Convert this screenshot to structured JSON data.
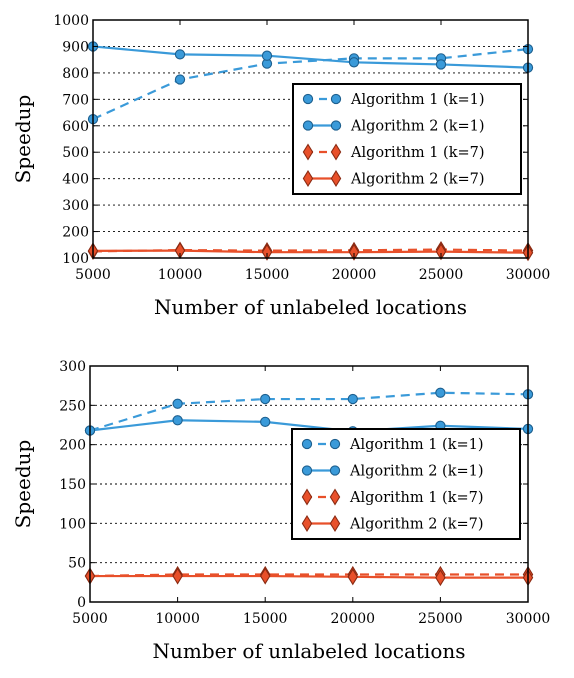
{
  "chart_data": [
    {
      "type": "line",
      "x": [
        5000,
        10000,
        15000,
        20000,
        25000,
        30000
      ],
      "xlabel": "Number of unlabeled locations",
      "ylabel": "Speedup",
      "xlim": [
        5000,
        30000
      ],
      "ylim": [
        100,
        1000
      ],
      "xticks": [
        5000,
        10000,
        15000,
        20000,
        25000,
        30000
      ],
      "yticks": [
        100,
        200,
        300,
        400,
        500,
        600,
        700,
        800,
        900,
        1000
      ],
      "grid": "horizontal dotted",
      "legend_position": "center-right",
      "series": [
        {
          "name": "Algorithm 1 (k=1)",
          "values": [
            625,
            775,
            835,
            855,
            855,
            890
          ],
          "color": "#3a9ad9",
          "dash": "dashed",
          "marker": "circle"
        },
        {
          "name": "Algorithm 2 (k=1)",
          "values": [
            900,
            870,
            865,
            840,
            832,
            820
          ],
          "color": "#3a9ad9",
          "dash": "solid",
          "marker": "circle"
        },
        {
          "name": "Algorithm 1 (k=7)",
          "values": [
            125,
            130,
            128,
            129,
            132,
            128
          ],
          "color": "#e8502a",
          "dash": "dashed",
          "marker": "diamond"
        },
        {
          "name": "Algorithm 2 (k=7)",
          "values": [
            127,
            128,
            122,
            122,
            124,
            120
          ],
          "color": "#e8502a",
          "dash": "solid",
          "marker": "diamond"
        }
      ]
    },
    {
      "type": "line",
      "x": [
        5000,
        10000,
        15000,
        20000,
        25000,
        30000
      ],
      "xlabel": "Number of unlabeled locations",
      "ylabel": "Speedup",
      "xlim": [
        5000,
        30000
      ],
      "ylim": [
        0,
        300
      ],
      "xticks": [
        5000,
        10000,
        15000,
        20000,
        25000,
        30000
      ],
      "yticks": [
        0,
        50,
        100,
        150,
        200,
        250,
        300
      ],
      "grid": "horizontal dotted",
      "legend_position": "center-right",
      "series": [
        {
          "name": "Algorithm 1 (k=1)",
          "values": [
            218,
            252,
            258,
            258,
            266,
            264
          ],
          "color": "#3a9ad9",
          "dash": "dashed",
          "marker": "circle"
        },
        {
          "name": "Algorithm 2 (k=1)",
          "values": [
            218,
            231,
            229,
            217,
            224,
            220
          ],
          "color": "#3a9ad9",
          "dash": "solid",
          "marker": "circle"
        },
        {
          "name": "Algorithm 1 (k=7)",
          "values": [
            33,
            35,
            35,
            35,
            35,
            35
          ],
          "color": "#e8502a",
          "dash": "dashed",
          "marker": "diamond"
        },
        {
          "name": "Algorithm 2 (k=7)",
          "values": [
            33,
            33,
            33,
            32,
            31,
            31
          ],
          "color": "#e8502a",
          "dash": "solid",
          "marker": "diamond"
        }
      ]
    }
  ]
}
